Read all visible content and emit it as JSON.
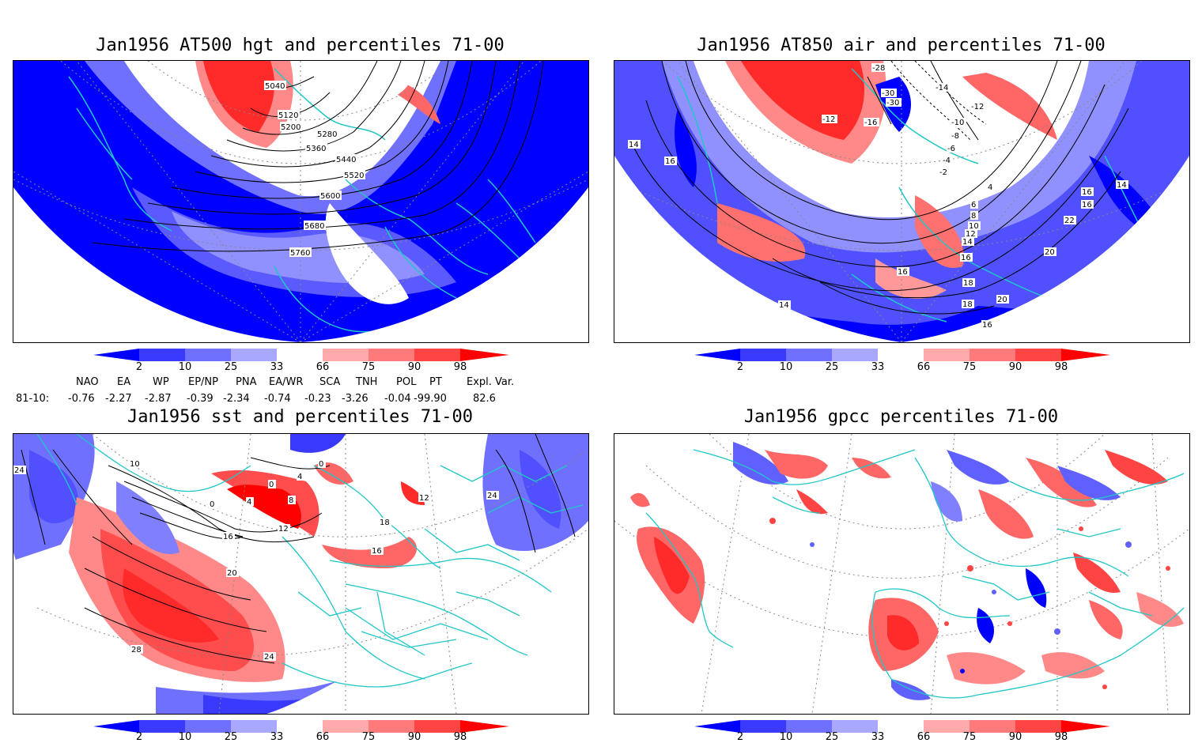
{
  "panels": {
    "p1": {
      "title": "Jan1956 AT500 hgt and percentiles 71-00",
      "contours": [
        "5040",
        "5120",
        "5200",
        "5280",
        "5360",
        "5440",
        "5520",
        "5600",
        "5680",
        "5760"
      ]
    },
    "p2": {
      "title": "Jan1956 AT850 air and percentiles 71-00",
      "contours": [
        "-28",
        "-30",
        "-30",
        "-14",
        "-12",
        "-10",
        "-8",
        "-6",
        "-4",
        "-2",
        "-12",
        "-16",
        "4",
        "6",
        "8",
        "10",
        "12",
        "14",
        "16",
        "16",
        "18",
        "20",
        "22",
        "20",
        "16",
        "18",
        "16",
        "14",
        "14",
        "14",
        "16",
        "16"
      ]
    },
    "p3": {
      "title": "Jan1956 sst and percentiles 71-00",
      "contours": [
        "0",
        "0",
        "4",
        "8",
        "12",
        "16",
        "20",
        "24",
        "28",
        "24",
        "24",
        "16",
        "12",
        "18",
        "10",
        "0",
        "4"
      ]
    },
    "p4": {
      "title": "Jan1956 gpcc percentiles 71-00"
    }
  },
  "colorbar": {
    "labels": [
      "2",
      "10",
      "25",
      "33",
      "66",
      "75",
      "90",
      "98"
    ],
    "colors": {
      "blue_dark": "#0000ff",
      "blue_mid": "#3a3aff",
      "blue_light": "#7070ff",
      "blue_pale": "#a8a8ff",
      "red_pale": "#ffaaaa",
      "red_light": "#ff7a7a",
      "red_mid": "#ff4444",
      "red_dark": "#ff0000"
    }
  },
  "teleconnections": {
    "headers": [
      "NAO",
      "EA",
      "WP",
      "EP/NP",
      "PNA",
      "EA/WR",
      "SCA",
      "TNH",
      "POL",
      "PT",
      "Expl. Var."
    ],
    "row_label": "81-10:",
    "values": [
      "-0.76",
      "-2.27",
      "-2.87",
      "-0.39",
      "-2.34",
      "-0.74",
      "-0.23",
      "-3.26",
      "-0.04",
      "-99.90",
      "82.6"
    ]
  },
  "map_colors": {
    "coast": "#1fc7c7",
    "contour": "#000000",
    "grid": "#888888"
  }
}
